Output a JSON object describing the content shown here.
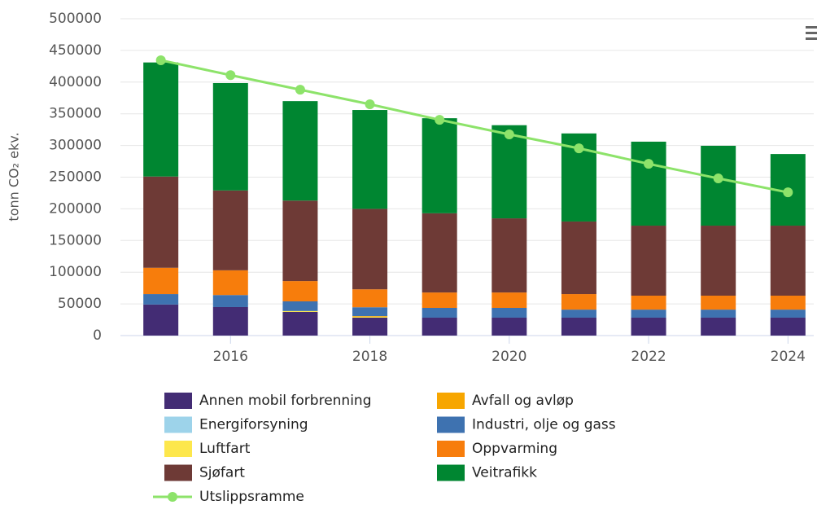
{
  "chart_data": {
    "type": "bar",
    "stacked": true,
    "y_label": "tonn CO₂ ekv.",
    "x": [
      2015,
      2016,
      2017,
      2018,
      2019,
      2020,
      2021,
      2022,
      2023,
      2024
    ],
    "xlim": [
      2014.42,
      2024.37
    ],
    "xticks": [
      2016,
      2018,
      2020,
      2022,
      2024
    ],
    "ylim": [
      0,
      500000
    ],
    "yticks": [
      0,
      50000,
      100000,
      150000,
      200000,
      250000,
      300000,
      350000,
      400000,
      450000,
      500000
    ],
    "grid": true,
    "series": [
      {
        "name": "Annen mobil forbrenning",
        "color": "#432c74",
        "values": [
          49000,
          45000,
          37300,
          28300,
          28300,
          28300,
          28300,
          28300,
          28300,
          28300
        ]
      },
      {
        "name": "Avfall og avløp",
        "color": "#f7a600",
        "values": [
          0,
          0,
          0,
          1000,
          0,
          0,
          0,
          0,
          0,
          0
        ]
      },
      {
        "name": "Energiforsyning",
        "color": "#9dd3ea",
        "values": [
          0,
          0,
          0,
          0,
          0,
          0,
          0,
          0,
          0,
          0
        ]
      },
      {
        "name": "Industri, olje og gass",
        "color": "#3e72b0",
        "values": [
          16500,
          19000,
          15200,
          13900,
          15400,
          15400,
          12700,
          12700,
          12700,
          12700
        ]
      },
      {
        "name": "Luftfart",
        "color": "#fde74c",
        "values": [
          0,
          0,
          1500,
          1500,
          0,
          0,
          0,
          0,
          0,
          0
        ]
      },
      {
        "name": "Oppvarming",
        "color": "#f77d0c",
        "values": [
          41500,
          39000,
          32000,
          28300,
          24300,
          24300,
          24500,
          22000,
          22000,
          22000
        ]
      },
      {
        "name": "Sjøfart",
        "color": "#6e3a36",
        "values": [
          144000,
          126000,
          127000,
          127000,
          125000,
          117000,
          114500,
          110500,
          110500,
          110500
        ]
      },
      {
        "name": "Veitrafikk",
        "color": "#008631",
        "values": [
          180000,
          169500,
          157000,
          156000,
          150000,
          147000,
          139000,
          132500,
          126000,
          113000
        ]
      },
      {
        "name": "Utslippsramme",
        "color": "#8de36a",
        "type": "line",
        "values": [
          434500,
          411000,
          388000,
          365000,
          340500,
          317500,
          295500,
          271000,
          248000,
          226000
        ]
      }
    ]
  }
}
